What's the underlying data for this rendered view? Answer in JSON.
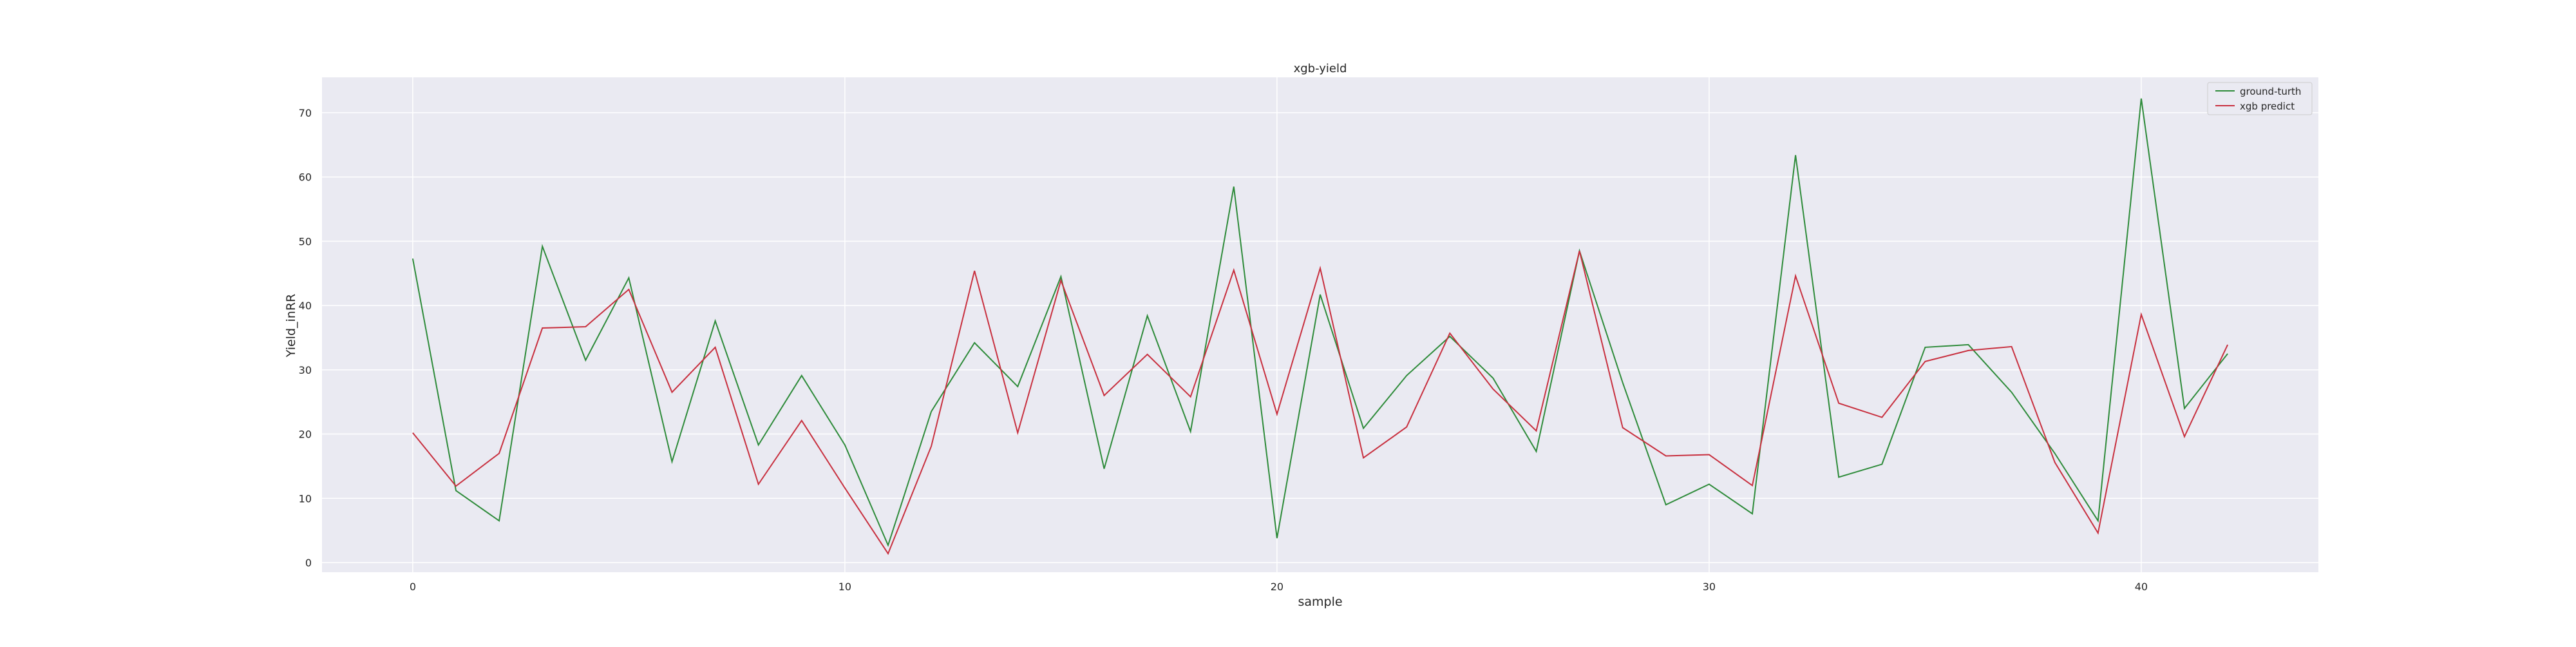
{
  "chart_data": {
    "type": "line",
    "title": "xgb-yield",
    "xlabel": "sample",
    "ylabel": "Yield_inRR",
    "x": [
      0,
      1,
      2,
      3,
      4,
      5,
      6,
      7,
      8,
      9,
      10,
      11,
      12,
      13,
      14,
      15,
      16,
      17,
      18,
      19,
      20,
      21,
      22,
      23,
      24,
      25,
      26,
      27,
      28,
      29,
      30,
      31,
      32,
      33,
      34,
      35,
      36,
      37,
      38,
      39,
      40,
      41,
      42
    ],
    "xlim": [
      -2.1,
      44.1
    ],
    "ylim": [
      -1.5,
      75.5
    ],
    "xticks": [
      0,
      10,
      20,
      30,
      40
    ],
    "yticks": [
      0,
      10,
      20,
      30,
      40,
      50,
      60,
      70
    ],
    "grid": true,
    "legend_position": "top-right",
    "series": [
      {
        "name": "ground-turth",
        "color": "#2e8b3a",
        "values": [
          47.3,
          11.2,
          6.5,
          49.2,
          31.5,
          44.3,
          15.7,
          37.6,
          18.3,
          29.1,
          18.3,
          2.7,
          23.5,
          34.2,
          27.4,
          44.5,
          14.6,
          38.4,
          20.4,
          58.5,
          3.8,
          41.7,
          20.9,
          29.1,
          35.2,
          28.7,
          17.3,
          48.5,
          28.0,
          9.0,
          12.2,
          7.6,
          63.4,
          13.3,
          15.3,
          33.5,
          33.9,
          26.5,
          17.0,
          6.5,
          72.2,
          24.0,
          32.5
        ]
      },
      {
        "name": "xgb predict",
        "color": "#c8303f",
        "values": [
          20.2,
          11.9,
          17.0,
          36.5,
          36.7,
          42.5,
          26.5,
          33.5,
          12.2,
          22.1,
          11.6,
          1.4,
          18.1,
          45.4,
          20.2,
          43.9,
          26.0,
          32.4,
          25.8,
          45.5,
          23.1,
          45.8,
          16.3,
          21.1,
          35.7,
          27.0,
          20.5,
          48.5,
          21.0,
          16.6,
          16.8,
          12.0,
          44.6,
          24.8,
          22.6,
          31.3,
          33.0,
          33.6,
          15.6,
          4.6,
          38.6,
          19.6,
          33.9
        ]
      }
    ]
  }
}
